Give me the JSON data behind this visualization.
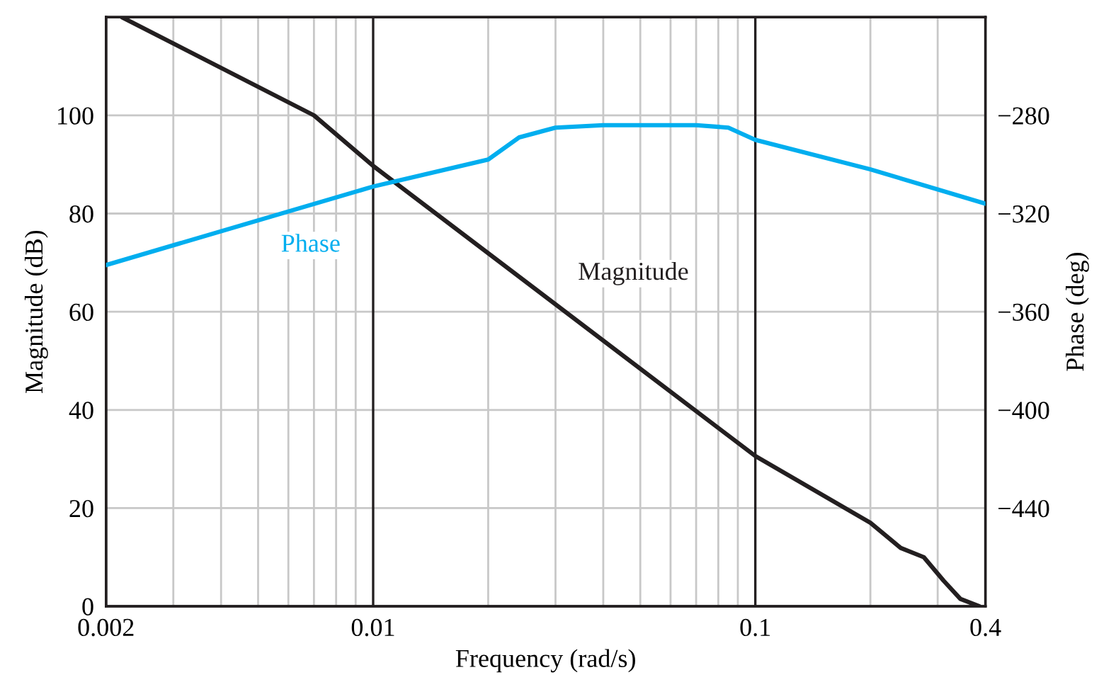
{
  "chart_data": {
    "type": "line",
    "xlabel": "Frequency (rad/s)",
    "ylabel": "Magnitude (dB)",
    "y2label": "Phase (deg)",
    "log": "x",
    "xlim": [
      0.002,
      0.4
    ],
    "xticks": [
      0.002,
      {
        "value": 0.003,
        "label": null
      },
      {
        "value": 0.004,
        "label": null
      },
      {
        "value": 0.005,
        "label": null
      },
      {
        "value": 0.006,
        "label": null
      },
      {
        "value": 0.007,
        "label": null
      },
      {
        "value": 0.008,
        "label": null
      },
      {
        "value": 0.009,
        "label": null
      },
      0.01,
      {
        "value": 0.02,
        "label": null
      },
      {
        "value": 0.03,
        "label": null
      },
      {
        "value": 0.04,
        "label": null
      },
      {
        "value": 0.05,
        "label": null
      },
      {
        "value": 0.06,
        "label": null
      },
      {
        "value": 0.07,
        "label": null
      },
      {
        "value": 0.08,
        "label": null
      },
      {
        "value": 0.09,
        "label": null
      },
      0.1,
      {
        "value": 0.2,
        "label": null
      },
      {
        "value": 0.3,
        "label": null
      },
      0.4
    ],
    "ylim": [
      0,
      120
    ],
    "yticks": [
      0,
      20,
      40,
      60,
      80,
      100
    ],
    "y2lim": [
      -480,
      -240
    ],
    "y2ticks": [
      {
        "value": -440,
        "label": "−440"
      },
      {
        "value": -400,
        "label": "−400"
      },
      {
        "value": -360,
        "label": "−360"
      },
      {
        "value": -320,
        "label": "−320"
      },
      {
        "value": -280,
        "label": "−280"
      }
    ],
    "grid": true,
    "marker": "none",
    "line_style": "solid",
    "series": [
      {
        "name": "Magnitude",
        "color": "#231f20",
        "x": [
          0.0022,
          0.007,
          0.01,
          0.1,
          0.2,
          0.24,
          0.276,
          0.311,
          0.344,
          0.386
        ],
        "values": [
          120,
          100,
          89.7,
          30.6,
          17.0,
          11.9,
          10.0,
          5.2,
          1.5,
          0
        ]
      },
      {
        "name": "Phase",
        "color": "#00aeef",
        "axis": "y2",
        "x": [
          0.002,
          0.01,
          0.02,
          0.0241,
          0.03,
          0.04,
          0.07,
          0.085,
          0.1,
          0.2,
          0.4
        ],
        "values": [
          -341,
          -309,
          -298,
          -289,
          -285,
          -284,
          -284,
          -285,
          -290,
          -302,
          -316
        ]
      }
    ]
  }
}
